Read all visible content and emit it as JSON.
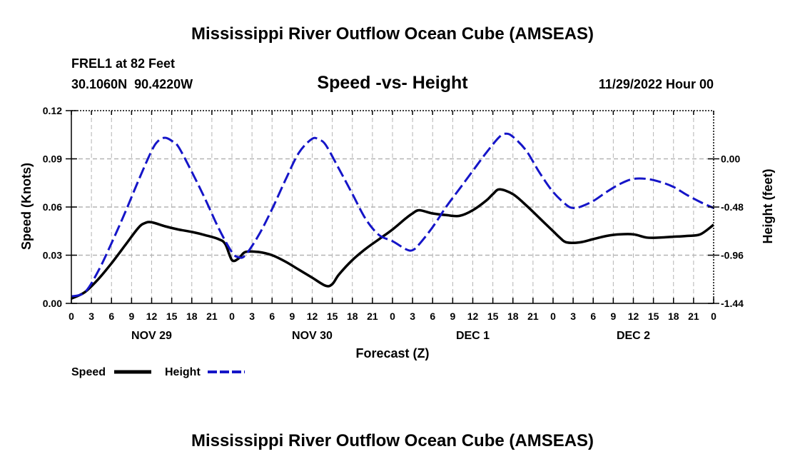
{
  "header": {
    "title": "Mississippi River Outflow Ocean Cube (AMSEAS)",
    "station_line": "FREL1 at 82 Feet",
    "coords_line": "30.1060N  90.4220W",
    "date_line": "11/29/2022 Hour 00"
  },
  "footer": {
    "title": "Mississippi River Outflow Ocean Cube (AMSEAS)"
  },
  "legend": {
    "speed_label": "Speed",
    "height_label": "Height"
  },
  "colors": {
    "speed": "#000000",
    "height": "#1515c8",
    "grid": "#b4b4b4"
  },
  "chart_data": {
    "type": "line",
    "title": "Speed -vs- Height",
    "xlabel": "Forecast (Z)",
    "ylabel": "Speed (Knots)",
    "y2label": "Height (feet)",
    "x_range": [
      0,
      96
    ],
    "ylim": [
      0,
      0.12
    ],
    "y2lim": [
      -1.44,
      0.48
    ],
    "y_ticks": [
      "0.00",
      "0.03",
      "0.06",
      "0.09",
      "0.12"
    ],
    "y2_ticks": [
      "-1.44",
      "-0.96",
      "-0.48",
      "0.00"
    ],
    "y2_tick_values": [
      -1.44,
      -0.96,
      -0.48,
      0.0
    ],
    "x_tick_labels": [
      "0",
      "3",
      "6",
      "9",
      "12",
      "15",
      "18",
      "21",
      "0",
      "3",
      "6",
      "9",
      "12",
      "15",
      "18",
      "21",
      "0",
      "3",
      "6",
      "9",
      "12",
      "15",
      "18",
      "21",
      "0",
      "3",
      "6",
      "9",
      "12",
      "15",
      "18",
      "21",
      "0"
    ],
    "day_labels": [
      {
        "label": "NOV 29",
        "center_hour": 12
      },
      {
        "label": "NOV 30",
        "center_hour": 36
      },
      {
        "label": "DEC 1",
        "center_hour": 60
      },
      {
        "label": "DEC 2",
        "center_hour": 84
      }
    ],
    "series": [
      {
        "name": "Speed",
        "axis": "left",
        "style": "solid",
        "x": [
          0,
          2,
          4,
          6,
          8,
          10,
          11,
          12,
          14,
          16,
          18,
          20,
          22,
          23,
          24,
          25,
          26,
          28,
          30,
          32,
          34,
          36,
          38,
          39,
          40,
          42,
          44,
          46,
          48,
          50,
          51,
          52,
          54,
          56,
          58,
          60,
          62,
          63,
          64,
          66,
          68,
          70,
          72,
          73,
          74,
          76,
          78,
          80,
          82,
          84,
          86,
          88,
          90,
          92,
          94,
          96
        ],
        "values": [
          0.003,
          0.007,
          0.015,
          0.025,
          0.036,
          0.047,
          0.05,
          0.0505,
          0.048,
          0.046,
          0.0445,
          0.0425,
          0.04,
          0.037,
          0.027,
          0.028,
          0.032,
          0.032,
          0.03,
          0.026,
          0.021,
          0.016,
          0.011,
          0.012,
          0.018,
          0.027,
          0.034,
          0.04,
          0.046,
          0.053,
          0.056,
          0.058,
          0.056,
          0.055,
          0.0545,
          0.058,
          0.064,
          0.068,
          0.071,
          0.068,
          0.061,
          0.053,
          0.045,
          0.041,
          0.038,
          0.038,
          0.04,
          0.042,
          0.043,
          0.043,
          0.041,
          0.041,
          0.0415,
          0.042,
          0.043,
          0.049
        ]
      },
      {
        "name": "Height",
        "axis": "right",
        "style": "dashed",
        "x": [
          0,
          2,
          4,
          6,
          8,
          10,
          12,
          13,
          14,
          15,
          16,
          18,
          20,
          22,
          24,
          25,
          26,
          28,
          30,
          32,
          34,
          36,
          37,
          38,
          40,
          42,
          44,
          46,
          48,
          50,
          51,
          52,
          54,
          56,
          58,
          60,
          62,
          64,
          65,
          66,
          68,
          70,
          72,
          74,
          75,
          76,
          78,
          80,
          82,
          84,
          86,
          88,
          90,
          92,
          94,
          96
        ],
        "values": [
          -1.37,
          -1.33,
          -1.12,
          -0.84,
          -0.54,
          -0.22,
          0.08,
          0.18,
          0.21,
          0.18,
          0.12,
          -0.13,
          -0.4,
          -0.69,
          -0.93,
          -0.98,
          -0.96,
          -0.76,
          -0.5,
          -0.21,
          0.06,
          0.2,
          0.19,
          0.14,
          -0.1,
          -0.35,
          -0.6,
          -0.76,
          -0.82,
          -0.9,
          -0.91,
          -0.85,
          -0.68,
          -0.48,
          -0.3,
          -0.12,
          0.06,
          0.22,
          0.25,
          0.22,
          0.08,
          -0.14,
          -0.33,
          -0.46,
          -0.49,
          -0.48,
          -0.42,
          -0.33,
          -0.25,
          -0.2,
          -0.2,
          -0.23,
          -0.28,
          -0.36,
          -0.43,
          -0.49
        ]
      }
    ]
  }
}
